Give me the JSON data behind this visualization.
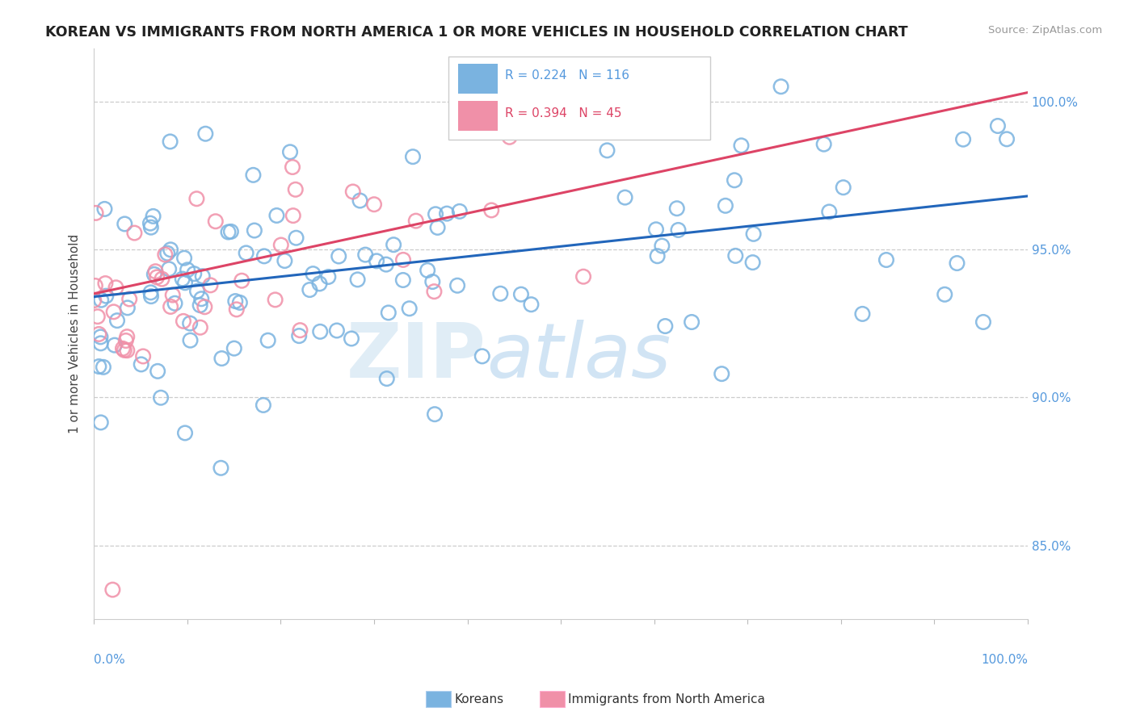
{
  "title": "KOREAN VS IMMIGRANTS FROM NORTH AMERICA 1 OR MORE VEHICLES IN HOUSEHOLD CORRELATION CHART",
  "source": "Source: ZipAtlas.com",
  "ylabel": "1 or more Vehicles in Household",
  "blue_R": 0.224,
  "blue_N": 116,
  "pink_R": 0.394,
  "pink_N": 45,
  "blue_color": "#7ab3e0",
  "pink_color": "#f090a8",
  "blue_line_color": "#2266bb",
  "pink_line_color": "#dd4466",
  "legend_label_blue": "Koreans",
  "legend_label_pink": "Immigrants from North America",
  "watermark_zip": "ZIP",
  "watermark_atlas": "atlas",
  "grid_color": "#cccccc",
  "background_color": "#ffffff",
  "axis_color": "#5599dd",
  "xlim": [
    0.0,
    1.0
  ],
  "ylim": [
    0.825,
    1.018
  ]
}
